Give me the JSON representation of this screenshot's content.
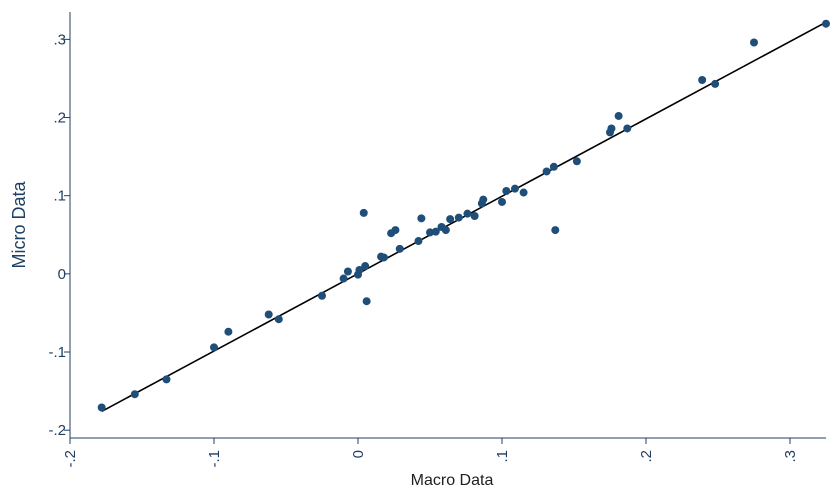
{
  "chart_data": {
    "type": "scatter",
    "title": "",
    "xlabel": "Macro Data",
    "ylabel": "Micro Data",
    "xlim": [
      -0.2,
      0.325
    ],
    "ylim": [
      -0.21,
      0.335
    ],
    "x_ticks": [
      -0.2,
      -0.1,
      0,
      0.1,
      0.2,
      0.3
    ],
    "x_tick_labels": [
      "-.2",
      "-.1",
      "0",
      ".1",
      ".2",
      ".3"
    ],
    "y_ticks": [
      -0.2,
      -0.1,
      0,
      0.1,
      0.2,
      0.3
    ],
    "y_tick_labels": [
      "-.2",
      "-.1",
      "0",
      ".1",
      ".2",
      ".3"
    ],
    "grid": false,
    "marker_color": "#1f4e79",
    "line_color": "#000000",
    "axis_color": "#1f3f63",
    "fit_line": {
      "x": [
        -0.178,
        0.325
      ],
      "y": [
        -0.176,
        0.322
      ]
    },
    "points": [
      {
        "x": -0.178,
        "y": -0.171
      },
      {
        "x": -0.155,
        "y": -0.154
      },
      {
        "x": -0.133,
        "y": -0.135
      },
      {
        "x": -0.1,
        "y": -0.094
      },
      {
        "x": -0.09,
        "y": -0.074
      },
      {
        "x": -0.062,
        "y": -0.052
      },
      {
        "x": -0.055,
        "y": -0.058
      },
      {
        "x": -0.025,
        "y": -0.028
      },
      {
        "x": -0.01,
        "y": -0.006
      },
      {
        "x": -0.007,
        "y": 0.003
      },
      {
        "x": 0.0,
        "y": -0.001
      },
      {
        "x": 0.001,
        "y": 0.005
      },
      {
        "x": 0.004,
        "y": 0.078
      },
      {
        "x": 0.005,
        "y": 0.01
      },
      {
        "x": 0.006,
        "y": -0.035
      },
      {
        "x": 0.016,
        "y": 0.022
      },
      {
        "x": 0.018,
        "y": 0.021
      },
      {
        "x": 0.023,
        "y": 0.052
      },
      {
        "x": 0.026,
        "y": 0.056
      },
      {
        "x": 0.029,
        "y": 0.032
      },
      {
        "x": 0.042,
        "y": 0.042
      },
      {
        "x": 0.044,
        "y": 0.071
      },
      {
        "x": 0.05,
        "y": 0.053
      },
      {
        "x": 0.054,
        "y": 0.054
      },
      {
        "x": 0.058,
        "y": 0.06
      },
      {
        "x": 0.061,
        "y": 0.056
      },
      {
        "x": 0.064,
        "y": 0.07
      },
      {
        "x": 0.07,
        "y": 0.072
      },
      {
        "x": 0.076,
        "y": 0.077
      },
      {
        "x": 0.081,
        "y": 0.074
      },
      {
        "x": 0.086,
        "y": 0.09
      },
      {
        "x": 0.087,
        "y": 0.095
      },
      {
        "x": 0.1,
        "y": 0.092
      },
      {
        "x": 0.103,
        "y": 0.106
      },
      {
        "x": 0.109,
        "y": 0.109
      },
      {
        "x": 0.115,
        "y": 0.104
      },
      {
        "x": 0.131,
        "y": 0.131
      },
      {
        "x": 0.136,
        "y": 0.137
      },
      {
        "x": 0.137,
        "y": 0.056
      },
      {
        "x": 0.152,
        "y": 0.144
      },
      {
        "x": 0.175,
        "y": 0.181
      },
      {
        "x": 0.176,
        "y": 0.186
      },
      {
        "x": 0.181,
        "y": 0.202
      },
      {
        "x": 0.187,
        "y": 0.186
      },
      {
        "x": 0.239,
        "y": 0.248
      },
      {
        "x": 0.248,
        "y": 0.243
      },
      {
        "x": 0.275,
        "y": 0.296
      },
      {
        "x": 0.325,
        "y": 0.32
      }
    ]
  }
}
